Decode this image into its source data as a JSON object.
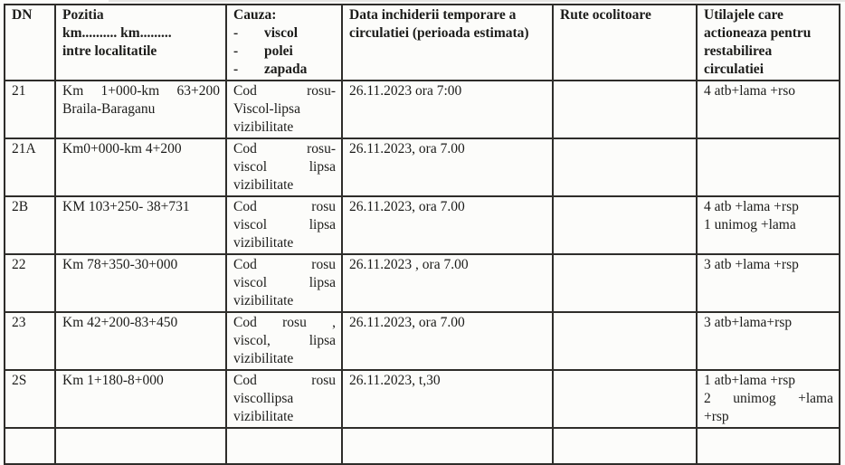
{
  "document": {
    "colors": {
      "paper": "#fcfcfa",
      "border": "#2e2d2a",
      "text": "#1c1c1a"
    },
    "table": {
      "header": {
        "dn": "DN",
        "pozitia_lines": [
          "Pozitia",
          "km.......... km.........",
          "intre localitatile"
        ],
        "cauza_title": "Cauza:",
        "cauza_items": [
          "viscol",
          "polei",
          "zapada"
        ],
        "data": "Data inchiderii temporare a circulatiei (perioada estimata)",
        "rute": "Rute ocolitoare",
        "utilaje": "Utilajele care actioneaza pentru restabilirea circulatiei"
      },
      "rows": [
        {
          "dn": "21",
          "pozitia": [
            [
              "Km",
              "1+000-km",
              "63+200"
            ],
            "Braila-Baraganu"
          ],
          "cauza": [
            [
              "Cod",
              "rosu-"
            ],
            "Viscol-lipsa",
            "vizibilitate"
          ],
          "data": "26.11.2023 ora 7:00",
          "rute": "",
          "utilaje": [
            "4 atb+lama +rso"
          ]
        },
        {
          "dn": "21A",
          "pozitia": [
            "Km0+000-km 4+200"
          ],
          "cauza": [
            [
              "Cod",
              "rosu-"
            ],
            [
              "viscol",
              "lipsa"
            ],
            "vizibilitate"
          ],
          "data": "26.11.2023, ora 7.00",
          "rute": "",
          "utilaje": []
        },
        {
          "dn": "2B",
          "pozitia": [
            "KM 103+250- 38+731"
          ],
          "cauza": [
            [
              "Cod",
              "rosu"
            ],
            [
              "viscol",
              "lipsa"
            ],
            "vizibilitate"
          ],
          "data": "26.11.2023, ora 7.00",
          "rute": "",
          "utilaje": [
            "4 atb +lama +rsp",
            "1 unimog +lama"
          ]
        },
        {
          "dn": "22",
          "pozitia": [
            "Km 78+350-30+000"
          ],
          "cauza": [
            [
              "Cod",
              "rosu"
            ],
            [
              "viscol",
              "lipsa"
            ],
            "vizibilitate"
          ],
          "data": "26.11.2023 , ora 7.00",
          "rute": "",
          "utilaje": [
            "3 atb +lama +rsp"
          ]
        },
        {
          "dn": "23",
          "pozitia": [
            "Km 42+200-83+450"
          ],
          "cauza": [
            [
              "Cod",
              "rosu",
              ","
            ],
            [
              "viscol,",
              "lipsa"
            ],
            "vizibilitate"
          ],
          "data": "26.11.2023, ora 7.00",
          "rute": "",
          "utilaje": [
            "3 atb+lama+rsp"
          ]
        },
        {
          "dn": "2S",
          "pozitia": [
            "Km 1+180-8+000"
          ],
          "cauza": [
            [
              "Cod",
              "rosu"
            ],
            "viscollipsa",
            "vizibilitate"
          ],
          "data": "26.11.2023, t,30",
          "rute": "",
          "utilaje": [
            "1 atb+lama +rsp",
            [
              "2",
              "unimog",
              "+lama"
            ],
            "+rsp"
          ]
        }
      ]
    }
  }
}
